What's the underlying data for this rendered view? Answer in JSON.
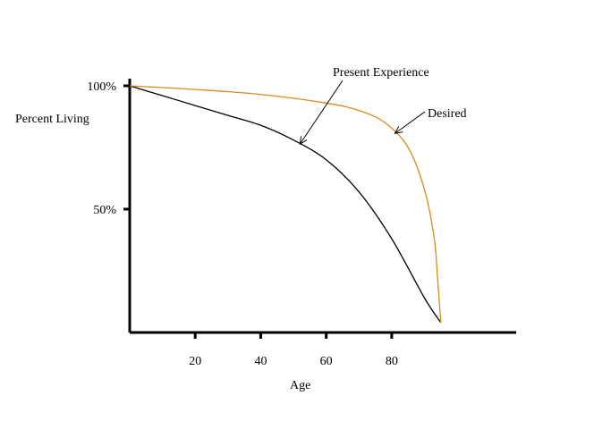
{
  "chart_data": {
    "type": "line",
    "title": "",
    "xlabel": "Age",
    "ylabel": "Percent Living",
    "x_ticks": [
      {
        "value": 20,
        "label": "20"
      },
      {
        "value": 40,
        "label": "40"
      },
      {
        "value": 60,
        "label": "60"
      },
      {
        "value": 80,
        "label": "80"
      }
    ],
    "y_ticks": [
      {
        "value": 50,
        "label": "50%"
      },
      {
        "value": 100,
        "label": "100%"
      }
    ],
    "xlim": [
      0,
      118
    ],
    "ylim": [
      0,
      100
    ],
    "grid": false,
    "series": [
      {
        "name": "Present Experience",
        "color": "#000000",
        "x": [
          0,
          10,
          20,
          30,
          40,
          50,
          60,
          70,
          80,
          90,
          95
        ],
        "y": [
          100,
          96,
          92,
          88,
          84,
          78,
          70,
          57,
          38,
          14,
          4
        ]
      },
      {
        "name": "Desired",
        "color": "#d98a1c",
        "x": [
          0,
          20,
          40,
          60,
          70,
          78,
          85,
          90,
          93,
          94,
          95
        ],
        "y": [
          100,
          98.5,
          96.5,
          93,
          90,
          85,
          75,
          58,
          38,
          22,
          4
        ]
      }
    ],
    "annotations": [
      {
        "text": "Present Experience",
        "target_series": "Present Experience",
        "target_x": 52
      },
      {
        "text": "Desired",
        "target_series": "Desired",
        "target_x": 81
      }
    ]
  }
}
